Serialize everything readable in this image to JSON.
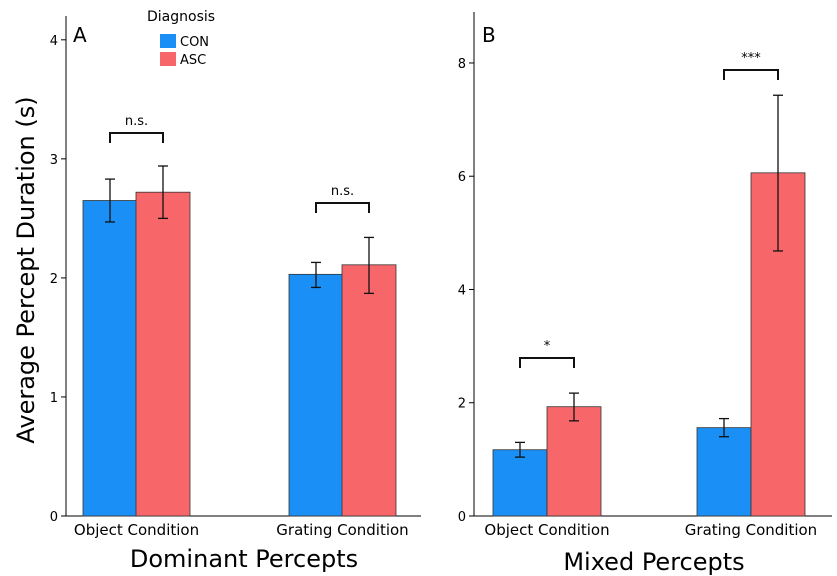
{
  "colors": {
    "CON": "#1a8ff5",
    "ASC": "#f7676a"
  },
  "legend": {
    "title": "Diagnosis",
    "items": [
      "CON",
      "ASC"
    ],
    "placement": "top-left of panel A"
  },
  "ylabel": "Average Percept Duration (s)",
  "chart_data": [
    {
      "type": "bar",
      "panel": "A",
      "xlabel": "Dominant Percepts",
      "ylabel": "Average Percept Duration (s)",
      "categories": [
        "Object Condition",
        "Grating Condition"
      ],
      "series": [
        {
          "name": "CON",
          "values": [
            2.65,
            2.03
          ],
          "error_low": [
            2.47,
            1.92
          ],
          "error_high": [
            2.83,
            2.13
          ]
        },
        {
          "name": "ASC",
          "values": [
            2.72,
            2.11
          ],
          "error_low": [
            2.5,
            1.87
          ],
          "error_high": [
            2.94,
            2.34
          ]
        }
      ],
      "ylim": [
        0,
        4.2
      ],
      "yticks": [
        0,
        1,
        2,
        3,
        4
      ],
      "significance": [
        "n.s.",
        "n.s."
      ],
      "grid": false
    },
    {
      "type": "bar",
      "panel": "B",
      "xlabel": "Mixed Percepts",
      "ylabel": "",
      "categories": [
        "Object Condition",
        "Grating Condition"
      ],
      "series": [
        {
          "name": "CON",
          "values": [
            1.17,
            1.56
          ],
          "error_low": [
            1.04,
            1.4
          ],
          "error_high": [
            1.3,
            1.72
          ]
        },
        {
          "name": "ASC",
          "values": [
            1.93,
            6.06
          ],
          "error_low": [
            1.68,
            4.68
          ],
          "error_high": [
            2.17,
            7.43
          ]
        }
      ],
      "ylim": [
        0,
        8.9
      ],
      "yticks": [
        0,
        2,
        4,
        6,
        8
      ],
      "significance": [
        "*",
        "***"
      ],
      "grid": false
    }
  ]
}
